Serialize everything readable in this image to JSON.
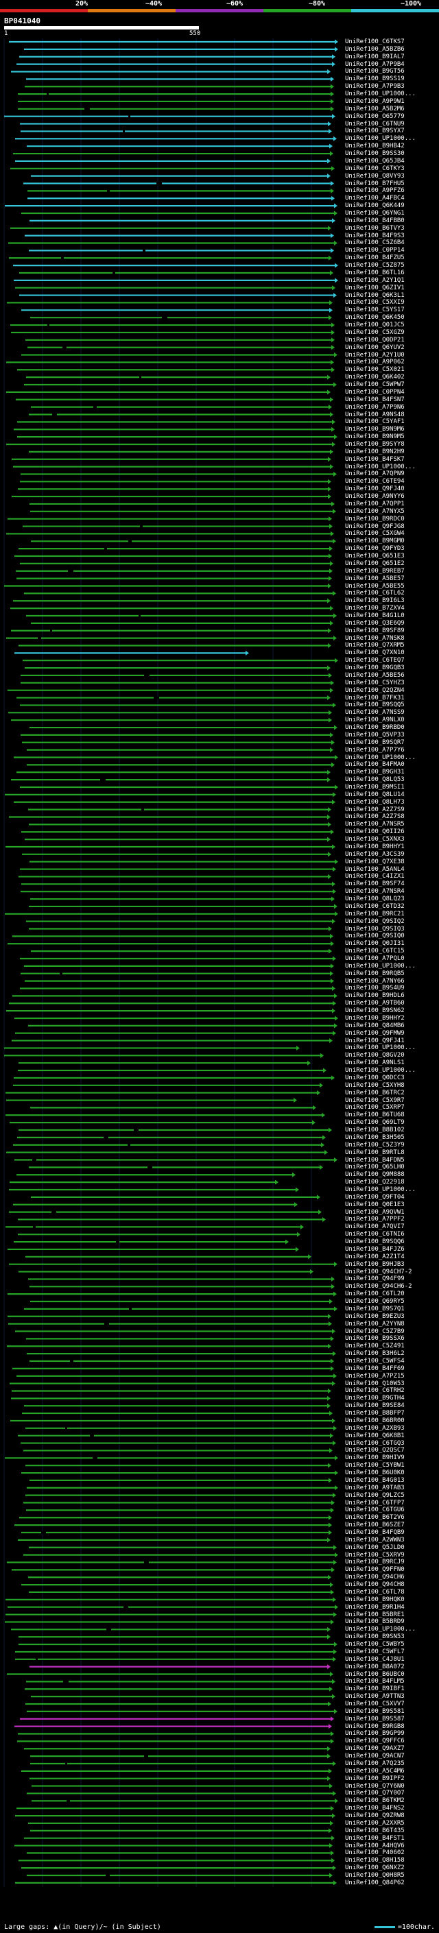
{
  "legend": {
    "labels": [
      "20%",
      "~40%",
      "~60%",
      "~80%",
      "~100%"
    ],
    "colors": [
      "#d42020",
      "#e07a10",
      "#8e2bb0",
      "#27a427",
      "#35c4d8"
    ]
  },
  "query": {
    "title": "BP041040",
    "start": "1",
    "end": "550"
  },
  "colors": {
    "cyan": "#35c4d8",
    "green": "#27a427",
    "magenta": "#c030c0",
    "gap": "#000000"
  },
  "hits": [
    "UniRef100_C6TKS7",
    "UniRef100_A5BZB6",
    "UniRef100_B9IAL7",
    "UniRef100_A7P9B4",
    "UniRef100_B9GT56",
    "UniRef100_B9SS19",
    "UniRef100_A7P9B3",
    "UniRef100_UP1000...",
    "UniRef100_A9P9W1",
    "UniRef100_A5B2M6",
    "UniRef100_O65779",
    "UniRef100_C6TNU9",
    "UniRef100_B9SYX7",
    "UniRef100_UP1000...",
    "UniRef100_B9HB42",
    "UniRef100_B9SS30",
    "UniRef100_Q65JB4",
    "UniRef100_C6TKY3",
    "UniRef100_Q8VY93",
    "UniRef100_B7FHU5",
    "UniRef100_A9PFZ6",
    "UniRef100_A4FBC4",
    "UniRef100_Q6K449",
    "UniRef100_Q6YNG1",
    "UniRef100_B4FBB0",
    "UniRef100_B6TVY3",
    "UniRef100_B4F9S3",
    "UniRef100_C5Z6B4",
    "UniRef100_C0PP14",
    "UniRef100_B4FZU5",
    "UniRef100_C5Z875",
    "UniRef100_B6TL16",
    "UniRef100_A2Y1Q1",
    "UniRef100_Q6ZIV1",
    "UniRef100_Q6K3L1",
    "UniRef100_C5XXI9",
    "UniRef100_C5YS17",
    "UniRef100_Q6K450",
    "UniRef100_Q01JC5",
    "UniRef100_C5XGZ9",
    "UniRef100_Q0DP21",
    "UniRef100_Q6YUV2",
    "UniRef100_A2Y1U0",
    "UniRef100_A9P062",
    "UniRef100_C5X021",
    "UniRef100_Q6K402",
    "UniRef100_C5WPW7",
    "UniRef100_C0PPN4",
    "UniRef100_B4FSN7",
    "UniRef100_A7P9N6",
    "UniRef100_A9NS48",
    "UniRef100_C5YAF1",
    "UniRef100_B9N9M6",
    "UniRef100_B9N9M5",
    "UniRef100_B9SYY8",
    "UniRef100_B9N2H9",
    "UniRef100_B4FSK7",
    "UniRef100_UP1000...",
    "UniRef100_A7QPN9",
    "UniRef100_C6TE94",
    "UniRef100_Q9FJ40",
    "UniRef100_A9NYY6",
    "UniRef100_A7QPP1",
    "UniRef100_A7NYX5",
    "UniRef100_B9RDC0",
    "UniRef100_Q9FJG8",
    "UniRef100_C5XGW4",
    "UniRef100_B9MGM0",
    "UniRef100_Q9FYD3",
    "UniRef100_Q651E3",
    "UniRef100_Q651E2",
    "UniRef100_B9REB7",
    "UniRef100_A5BE57",
    "UniRef100_A5BE55",
    "UniRef100_C6TL62",
    "UniRef100_B9I6L3",
    "UniRef100_B7ZXV4",
    "UniRef100_B4G1L0",
    "UniRef100_Q3E6Q9",
    "UniRef100_B9SF89",
    "UniRef100_A7NSK8",
    "UniRef100_Q7XRM5",
    "UniRef100_Q7XN10",
    "UniRef100_C6TEQ7",
    "UniRef100_B9GQB3",
    "UniRef100_A5BE56",
    "UniRef100_C5YHZ3",
    "UniRef100_Q2QZN4",
    "UniRef100_B7FK31",
    "UniRef100_B9SQQ5",
    "UniRef100_A7NSS9",
    "UniRef100_A9NLX0",
    "UniRef100_B9RBD0",
    "UniRef100_Q5VP33",
    "UniRef100_B9SQR7",
    "UniRef100_A7P7Y6",
    "UniRef100_UP1000...",
    "UniRef100_B4FMA0",
    "UniRef100_B9GH31",
    "UniRef100_Q8LQ53",
    "UniRef100_B9MSI1",
    "UniRef100_Q8LU14",
    "UniRef100_Q8LH73",
    "UniRef100_A2Z7S9",
    "UniRef100_A2Z7S8",
    "UniRef100_A7NSR5",
    "UniRef100_Q0II26",
    "UniRef100_C5XNX3",
    "UniRef100_B9HHY1",
    "UniRef100_A3CS39",
    "UniRef100_Q7XE38",
    "UniRef100_A5ANL4",
    "UniRef100_C4IZX1",
    "UniRef100_B9SF74",
    "UniRef100_A7NSR4",
    "UniRef100_Q8LQ23",
    "UniRef100_C6TD32",
    "UniRef100_B9RC21",
    "UniRef100_Q9SIQ2",
    "UniRef100_Q9SIQ3",
    "UniRef100_Q9SIQ0",
    "UniRef100_Q0JI31",
    "UniRef100_C6TC15",
    "UniRef100_A7PQL0",
    "UniRef100_UP1000...",
    "UniRef100_B9RQB5",
    "UniRef100_A7NY66",
    "UniRef100_B9S4U9",
    "UniRef100_B9HDL6",
    "UniRef100_A9TB60",
    "UniRef100_B9SN62",
    "UniRef100_B9HHY2",
    "UniRef100_Q84MB6",
    "UniRef100_Q9FMW9",
    "UniRef100_Q9FJ41",
    "UniRef100_UP1000...",
    "UniRef100_Q8GV20",
    "UniRef100_A9NLS1",
    "UniRef100_UP1000...",
    "UniRef100_Q0DCC3",
    "UniRef100_C5XYH8",
    "UniRef100_B6TRC2",
    "UniRef100_C5X9R7",
    "UniRef100_C5XRP7",
    "UniRef100_B6TU68",
    "UniRef100_Q69LT9",
    "UniRef100_B8B102",
    "UniRef100_B3H505",
    "UniRef100_C5Z3Y9",
    "UniRef100_B9RTL8",
    "UniRef100_B4FDN5",
    "UniRef100_Q65LH0",
    "UniRef100_Q9M888",
    "UniRef100_Q22918",
    "UniRef100_UP1000...",
    "UniRef100_Q9FT04",
    "UniRef100_Q0E1E3",
    "UniRef100_A9QVW1",
    "UniRef100_A7PPF2",
    "UniRef100_A7QVI7",
    "UniRef100_C6TNI6",
    "UniRef100_B9SQQ6",
    "UniRef100_B4FJZ6",
    "UniRef100_A2Z1T4",
    "UniRef100_B9HJB3",
    "UniRef100_Q94CH7-2",
    "UniRef100_Q94F99",
    "UniRef100_Q94CH6-2",
    "UniRef100_C6TL20",
    "UniRef100_Q69RY5",
    "UniRef100_B9S7Q1",
    "UniRef100_B9EZU3",
    "UniRef100_A2YYN8",
    "UniRef100_C5Z7B9",
    "UniRef100_B9SSX6",
    "UniRef100_C5Z491",
    "UniRef100_B3H6L2",
    "UniRef100_C5WFS4",
    "UniRef100_B4FF69",
    "UniRef100_A7PZ15",
    "UniRef100_Q10W53",
    "UniRef100_C6TRH2",
    "UniRef100_B9GTH4",
    "UniRef100_B9SE84",
    "UniRef100_B8BFP7",
    "UniRef100_B6BR00",
    "UniRef100_A2XB93",
    "UniRef100_Q6K8B1",
    "UniRef100_C6TGQ3",
    "UniRef100_Q2QSC7",
    "UniRef100_B9HIV9",
    "UniRef100_C5YBW1",
    "UniRef100_B6U0K0",
    "UniRef100_B4G013",
    "UniRef100_A9TAB3",
    "UniRef100_Q9LZC5",
    "UniRef100_C6TFP7",
    "UniRef100_C6TGU6",
    "UniRef100_B6T2V6",
    "UniRef100_B6SZE7",
    "UniRef100_B4FQB9",
    "UniRef100_A2WWN3",
    "UniRef100_Q5JLD0",
    "UniRef100_C5XRV9",
    "UniRef100_B9RCJ9",
    "UniRef100_Q9FFN0",
    "UniRef100_Q94CH6",
    "UniRef100_Q94CH8",
    "UniRef100_C6TL78",
    "UniRef100_B9HQK0",
    "UniRef100_B9R1H4",
    "UniRef100_B5BRE1",
    "UniRef100_B5BRD9",
    "UniRef100_UP1000...",
    "UniRef100_B9SN53",
    "UniRef100_C5WBY5",
    "UniRef100_C5WFL7",
    "UniRef100_C4J8U1",
    "UniRef100_B8A072",
    "UniRef100_B6UBC0",
    "UniRef100_B4FLM5",
    "UniRef100_B9IBF1",
    "UniRef100_A9TTN3",
    "UniRef100_C5XVV7",
    "UniRef100_B9S581",
    "UniRef100_B9S587",
    "UniRef100_B9RGB8",
    "UniRef100_B9GP99",
    "UniRef100_Q9FFC6",
    "UniRef100_Q9AXZ7",
    "UniRef100_Q9ACN7",
    "UniRef100_A7Q235",
    "UniRef100_A5C4M6",
    "UniRef100_B9IPF2",
    "UniRef100_Q7Y6N0",
    "UniRef100_Q7Y0O7",
    "UniRef100_B6TKM2",
    "UniRef100_B4FNS2",
    "UniRef100_Q9ZRW8",
    "UniRef100_A2XXR5",
    "UniRef100_B6T435",
    "UniRef100_B4FST1",
    "UniRef100_A4HQV6",
    "UniRef100_P40602",
    "UniRef100_Q8H158",
    "UniRef100_Q6NXZ2",
    "UniRef100_Q0H8R5",
    "UniRef100_Q84P62"
  ],
  "footer": {
    "gaps_label": "Large gaps: ▲(in Query)/~ (in Subject)",
    "scale_label": "=100char."
  }
}
